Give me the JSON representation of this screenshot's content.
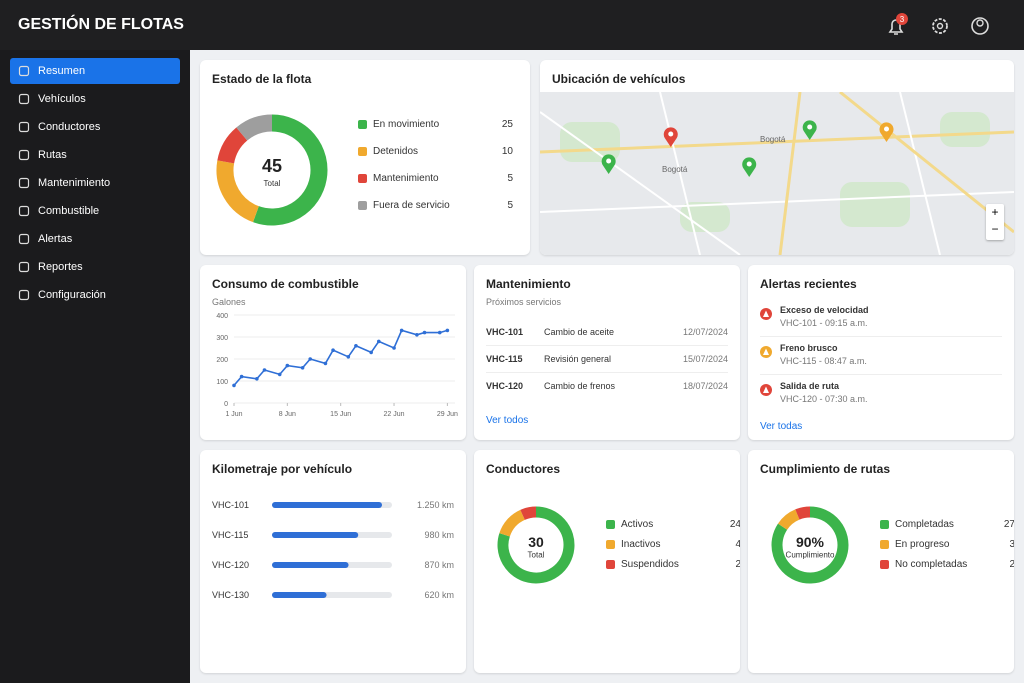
{
  "header": {
    "title": "GESTIÓN DE FLOTAS",
    "notifications": 3
  },
  "sidebar": {
    "active": 0,
    "items": [
      "Resumen",
      "Vehículos",
      "Conductores",
      "Rutas",
      "Mantenimiento",
      "Combustible",
      "Alertas",
      "Reportes",
      "Configuración"
    ]
  },
  "fleet_status": {
    "title": "Estado de la flota",
    "total": 45,
    "total_label": "Total",
    "segments": [
      {
        "name": "En movimiento",
        "value": 25,
        "color": "#3cb44b"
      },
      {
        "name": "Detenidos",
        "value": 10,
        "color": "#f0a92e"
      },
      {
        "name": "Mantenimiento",
        "value": 5,
        "color": "#e0453a"
      },
      {
        "name": "Fuera de servicio",
        "value": 5,
        "color": "#9e9e9e"
      }
    ]
  },
  "map": {
    "title": "Ubicación de vehículos",
    "city_labels": [
      "Bogotá",
      "Bogotá"
    ],
    "zoom_in": "+",
    "zoom_out": "−"
  },
  "fuel": {
    "title": "Consumo de combustible",
    "unit": "Galones",
    "type": "line",
    "color": "#2f6fd6",
    "x": [
      1,
      2,
      4,
      5,
      7,
      8,
      10,
      11,
      13,
      14,
      16,
      17,
      19,
      20,
      22,
      23,
      25,
      26,
      28,
      29
    ],
    "values": [
      80,
      120,
      110,
      150,
      130,
      170,
      160,
      200,
      180,
      240,
      210,
      260,
      230,
      280,
      250,
      330,
      310,
      320,
      320,
      330
    ],
    "xlim": [
      1,
      30
    ],
    "ylim": [
      0,
      400
    ],
    "yticks": [
      0,
      100,
      200,
      300,
      400
    ],
    "xticks": [
      {
        "value": 1,
        "label": "1 Jun"
      },
      {
        "value": 8,
        "label": "8 Jun"
      },
      {
        "value": 15,
        "label": "15 Jun"
      },
      {
        "value": 22,
        "label": "22 Jun"
      },
      {
        "value": 29,
        "label": "29 Jun"
      }
    ],
    "grid": true
  },
  "maintenance": {
    "title": "Mantenimiento",
    "subtitle": "Próximos servicios",
    "rows": [
      [
        "VHC-101",
        "Cambio de aceite",
        "12/07/2024"
      ],
      [
        "VHC-115",
        "Revisión general",
        "15/07/2024"
      ],
      [
        "VHC-120",
        "Cambio de frenos",
        "18/07/2024"
      ]
    ],
    "link": "Ver todos"
  },
  "alerts": {
    "title": "Alertas recientes",
    "items": [
      {
        "title": "Exceso de velocidad",
        "detail": "VHC-101 - 09:15 a.m.",
        "color": "#e0453a"
      },
      {
        "title": "Freno brusco",
        "detail": "VHC-115 - 08:47 a.m.",
        "color": "#f0a92e"
      },
      {
        "title": "Salida de ruta",
        "detail": "VHC-120 - 07:30 a.m.",
        "color": "#e0453a"
      }
    ],
    "link": "Ver todas"
  },
  "mileage": {
    "title": "Kilometraje por vehículo",
    "color": "#2f6fd6",
    "rows": [
      {
        "vehicle": "VHC-101",
        "value": 1250,
        "value_label": "1.250 km"
      },
      {
        "vehicle": "VHC-115",
        "value": 980,
        "value_label": "980 km"
      },
      {
        "vehicle": "VHC-120",
        "value": 870,
        "value_label": "870 km"
      },
      {
        "vehicle": "VHC-130",
        "value": 620,
        "value_label": "620 km"
      }
    ]
  },
  "drivers": {
    "title": "Conductores",
    "total": 30,
    "total_label": "Total",
    "segments": [
      {
        "name": "Activos",
        "value": 24,
        "color": "#3cb44b"
      },
      {
        "name": "Inactivos",
        "value": 4,
        "color": "#f0a92e"
      },
      {
        "name": "Suspendidos",
        "value": 2,
        "color": "#e0453a"
      }
    ]
  },
  "routes": {
    "title": "Cumplimiento de rutas",
    "total": {
      "value": 90,
      "label": "90%"
    },
    "total_label": "Cumplimiento",
    "segments": [
      {
        "name": "Completadas",
        "value": 27,
        "color": "#3cb44b"
      },
      {
        "name": "En progreso",
        "value": 3,
        "color": "#f0a92e"
      },
      {
        "name": "No completadas",
        "value": 2,
        "color": "#e0453a"
      }
    ]
  }
}
